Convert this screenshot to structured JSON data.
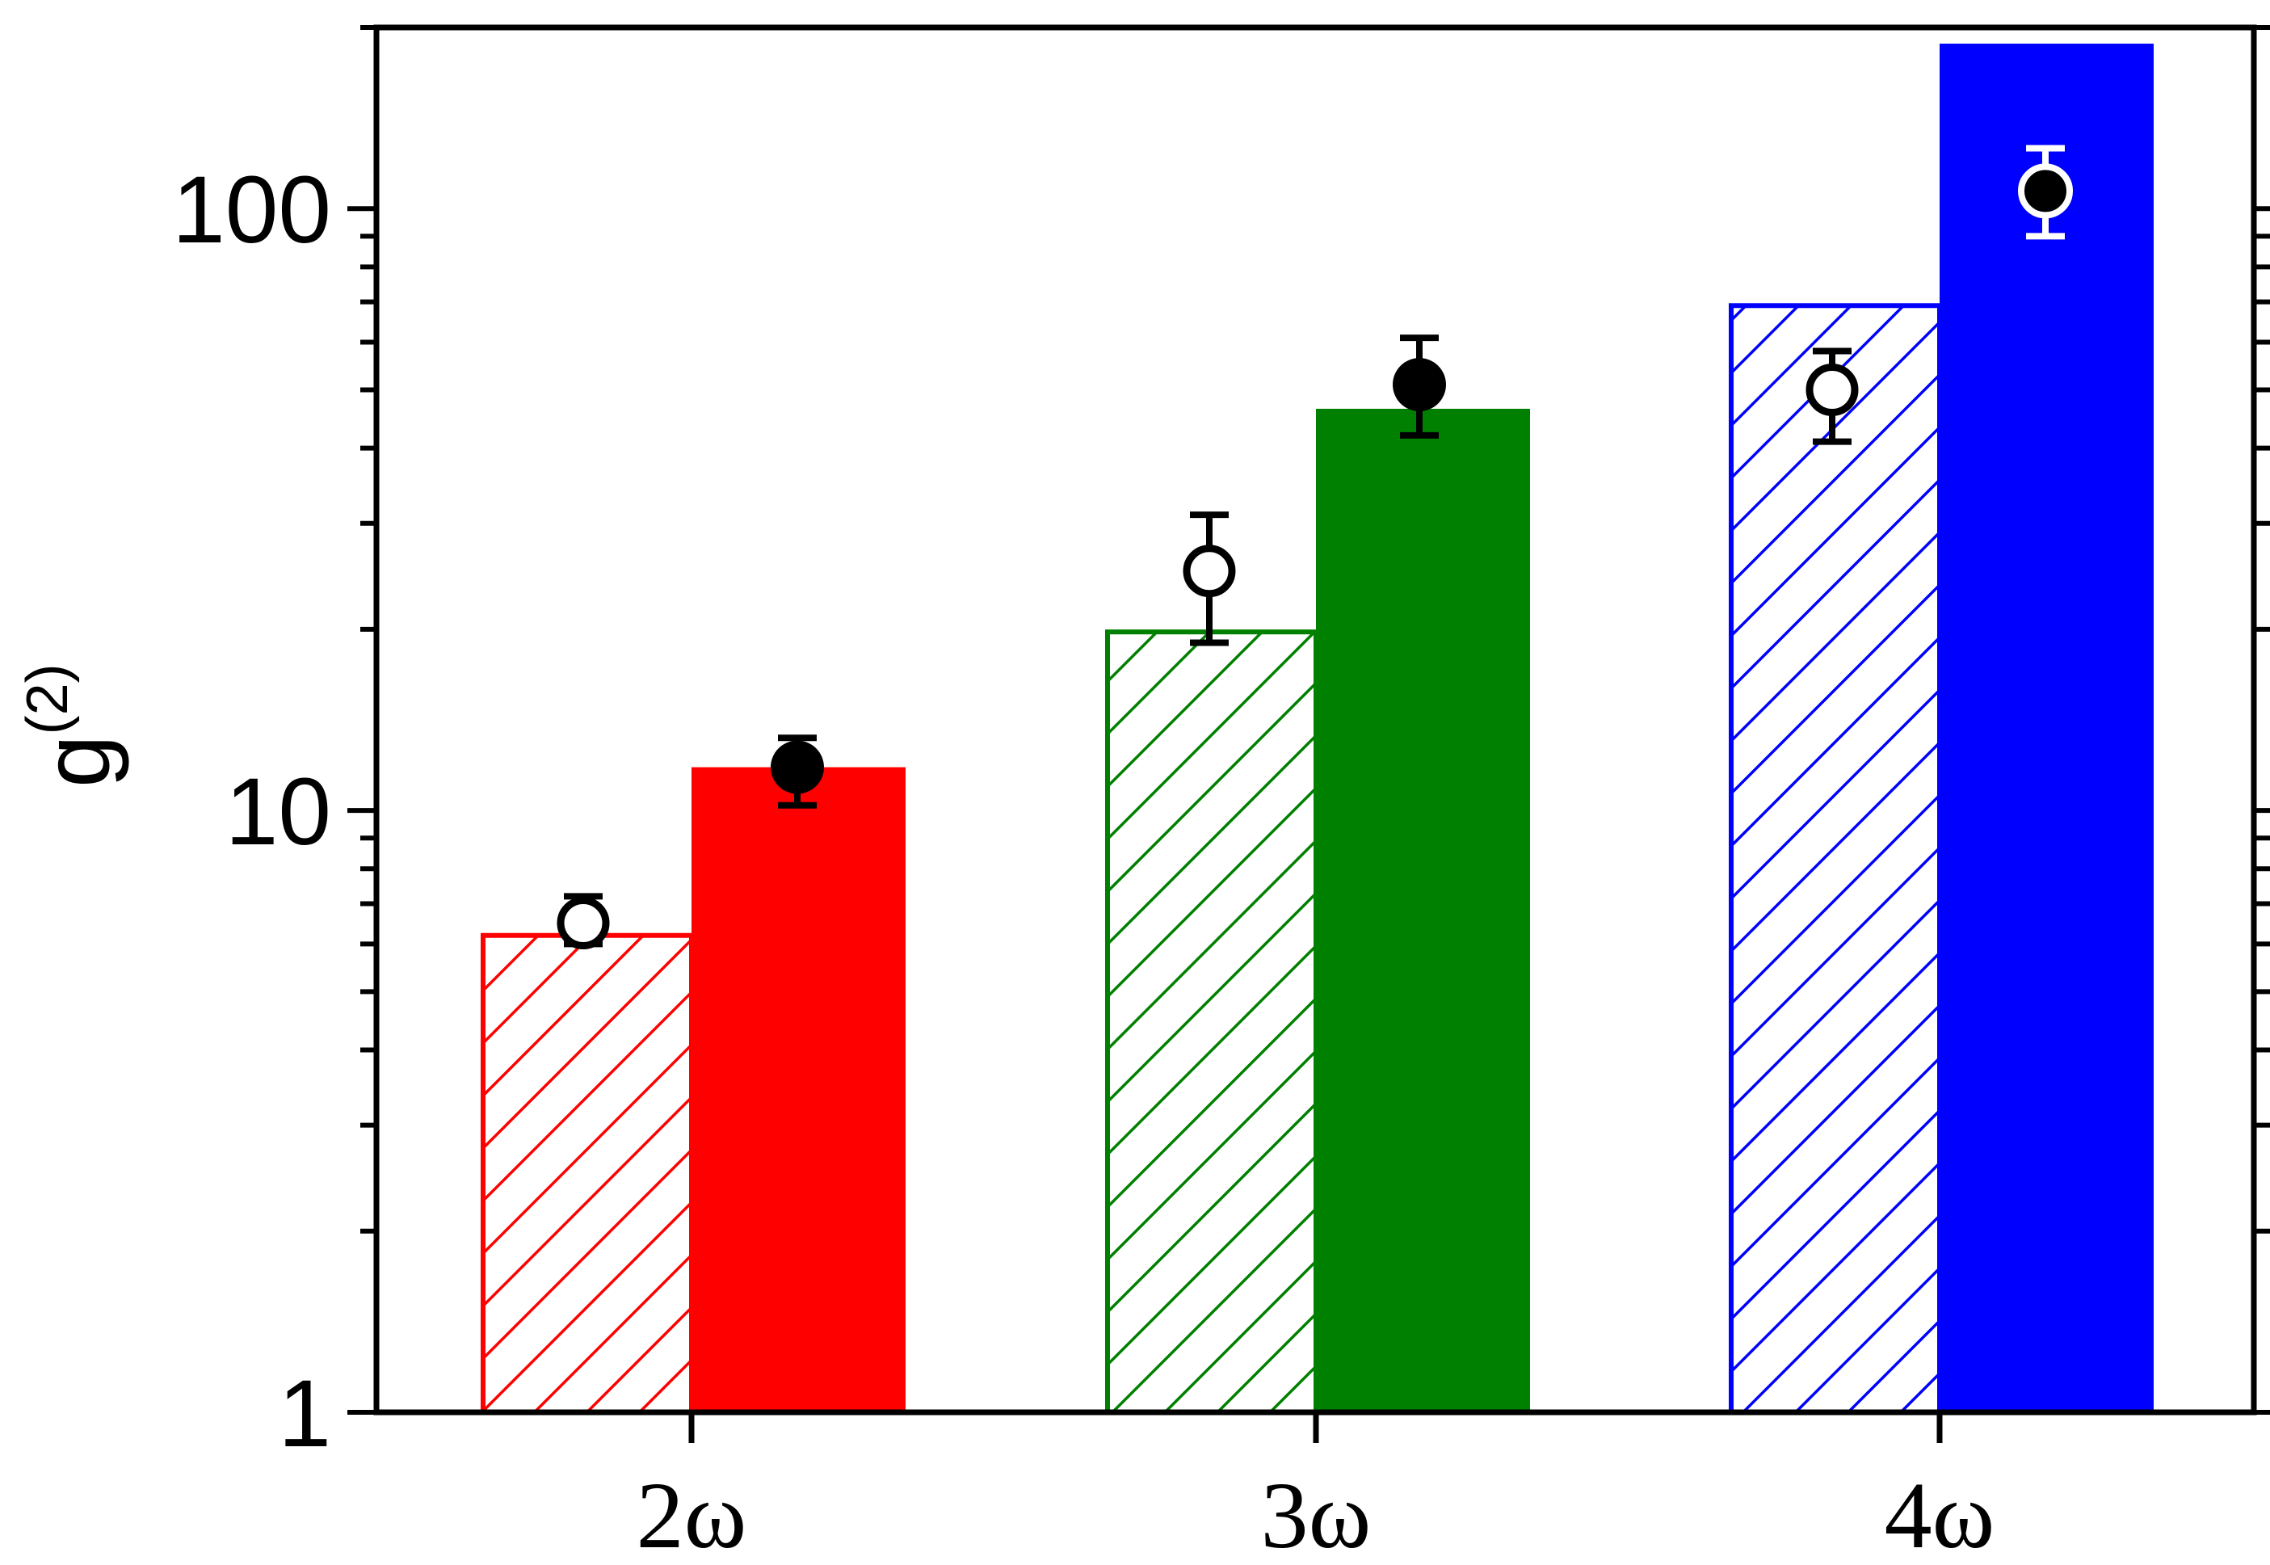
{
  "chart_data": {
    "type": "bar",
    "title": "",
    "xlabel": "",
    "ylabel": "g",
    "ylabel_superscript": "(2)",
    "yscale": "log",
    "ylim": [
      1,
      200
    ],
    "yticks": [
      1,
      10,
      100
    ],
    "ytick_labels": [
      "1",
      "10",
      "100"
    ],
    "categories": [
      "2ω",
      "3ω",
      "4ω"
    ],
    "grid": false,
    "legend": "none",
    "series": [
      {
        "style": "hatched",
        "colors": [
          "#ff0000",
          "#008000",
          "#0000ff"
        ],
        "values": [
          6.2,
          19.8,
          69
        ]
      },
      {
        "style": "solid",
        "colors": [
          "#ff0000",
          "#008000",
          "#0000ff"
        ],
        "values": [
          11.8,
          46.5,
          188
        ]
      }
    ],
    "points": [
      {
        "marker": "open-circle",
        "values": [
          6.5,
          25,
          50
        ],
        "err_low": [
          6.0,
          19,
          41
        ],
        "err_high": [
          7.2,
          31,
          58
        ]
      },
      {
        "marker": "filled-circle",
        "values": [
          11.8,
          51,
          107
        ],
        "err_low": [
          10.2,
          42,
          90
        ],
        "err_high": [
          13.2,
          61,
          126
        ]
      }
    ]
  }
}
